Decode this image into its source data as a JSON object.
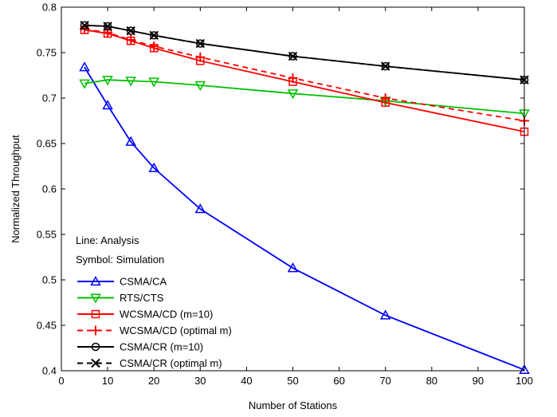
{
  "chart_data": {
    "type": "line",
    "xlabel": "Number of Stations",
    "ylabel": "Normalized Throughput",
    "xlim": [
      0,
      100
    ],
    "ylim": [
      0.4,
      0.8
    ],
    "xticks": [
      0,
      10,
      20,
      30,
      40,
      50,
      60,
      70,
      80,
      90,
      100
    ],
    "yticks": [
      0.4,
      0.45,
      0.5,
      0.55,
      0.6,
      0.65,
      0.7,
      0.75,
      0.8
    ],
    "ytick_labels": [
      "0.4",
      "0.45",
      "0.5",
      "0.55",
      "0.6",
      "0.65",
      "0.7",
      "0.75",
      "0.8"
    ],
    "grid": false,
    "legend_placement": "bottom-left",
    "legend_notes": [
      "Line: Analysis",
      "Symbol: Simulation"
    ],
    "series": [
      {
        "name": "CSMA/CA",
        "color": "#0000ff",
        "line": "solid",
        "marker": "triangle-up",
        "x": [
          5,
          10,
          15,
          20,
          30,
          50,
          70,
          100
        ],
        "analysis": [
          0.734,
          0.692,
          0.652,
          0.623,
          0.578,
          0.513,
          0.461,
          0.401
        ],
        "simulation": [
          0.734,
          0.692,
          0.652,
          0.623,
          0.578,
          0.513,
          0.461,
          0.401
        ]
      },
      {
        "name": "RTS/CTS",
        "color": "#00c000",
        "line": "solid",
        "marker": "triangle-down",
        "x": [
          5,
          10,
          15,
          20,
          30,
          50,
          70,
          100
        ],
        "analysis": [
          0.716,
          0.72,
          0.719,
          0.718,
          0.714,
          0.705,
          0.697,
          0.683
        ],
        "simulation": [
          0.716,
          0.72,
          0.719,
          0.718,
          0.714,
          0.705,
          0.697,
          0.683
        ]
      },
      {
        "name": "WCSMA/CD (m=10)",
        "color": "#ff0000",
        "line": "solid",
        "marker": "square",
        "x": [
          5,
          10,
          15,
          20,
          30,
          50,
          70,
          100
        ],
        "analysis": [
          0.775,
          0.771,
          0.763,
          0.755,
          0.741,
          0.718,
          0.695,
          0.663
        ],
        "simulation": [
          0.775,
          0.771,
          0.763,
          0.755,
          0.741,
          0.718,
          0.695,
          0.663
        ]
      },
      {
        "name": "WCSMA/CD (optimal m)",
        "color": "#ff0000",
        "line": "dashed",
        "marker": "plus",
        "x": [
          5,
          10,
          15,
          20,
          30,
          50,
          70,
          100
        ],
        "analysis": [
          0.776,
          0.772,
          0.764,
          0.757,
          0.745,
          0.722,
          0.7,
          0.675
        ],
        "simulation": [
          0.776,
          0.772,
          0.764,
          0.757,
          0.745,
          0.722,
          0.7,
          0.675
        ]
      },
      {
        "name": "CSMA/CR (m=10)",
        "color": "#000000",
        "line": "solid",
        "marker": "circle",
        "x": [
          5,
          10,
          15,
          20,
          30,
          50,
          70,
          100
        ],
        "analysis": [
          0.78,
          0.779,
          0.774,
          0.769,
          0.76,
          0.746,
          0.735,
          0.72
        ],
        "simulation": [
          0.78,
          0.779,
          0.774,
          0.769,
          0.76,
          0.746,
          0.735,
          0.72
        ]
      },
      {
        "name": "CSMA/CR (optimal m)",
        "color": "#000000",
        "line": "dashed",
        "marker": "x",
        "x": [
          5,
          10,
          15,
          20,
          30,
          50,
          70,
          100
        ],
        "analysis": [
          0.78,
          0.779,
          0.774,
          0.769,
          0.76,
          0.746,
          0.735,
          0.72
        ],
        "simulation": [
          0.78,
          0.779,
          0.774,
          0.769,
          0.76,
          0.746,
          0.735,
          0.72
        ]
      }
    ]
  }
}
